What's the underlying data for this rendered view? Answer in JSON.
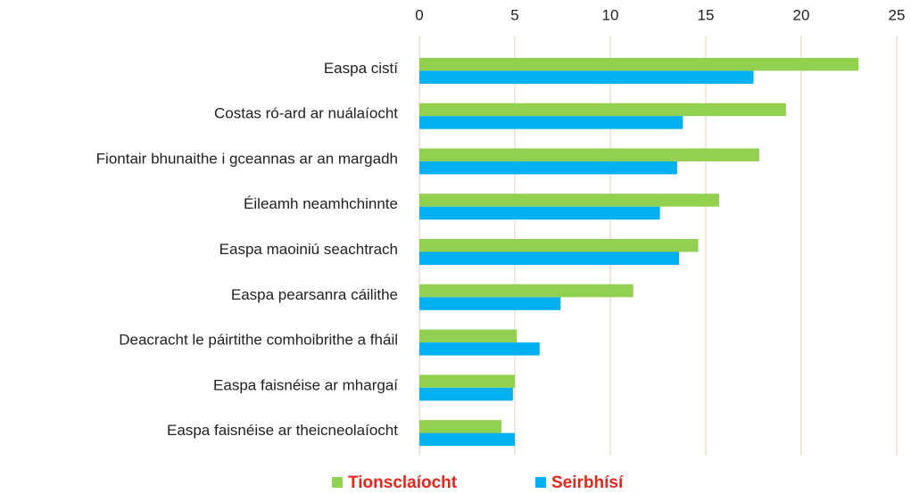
{
  "chart_data": {
    "type": "hbar",
    "categories": [
      "Easpa cistí",
      "Costas ró-ard ar nuálaíocht",
      "Fiontair bhunaithe i gceannas ar an margadh",
      "Éileamh neamhchinnte",
      "Easpa maoiniú seachtrach",
      "Easpa pearsanra cáilithe",
      "Deacracht le páirtithe comhoibrithe a fháil",
      "Easpa faisnéise ar mhargaí",
      "Easpa faisnéise ar theicneolaíocht"
    ],
    "series": [
      {
        "name": "Tionsclaíocht",
        "color": "#92d050",
        "values": [
          23.0,
          19.2,
          17.8,
          15.7,
          14.6,
          11.2,
          5.1,
          5.0,
          4.3
        ]
      },
      {
        "name": "Seirbhísí",
        "color": "#00b0f0",
        "values": [
          17.5,
          13.8,
          13.5,
          12.6,
          13.6,
          7.4,
          6.3,
          4.9,
          5.0
        ]
      }
    ],
    "xlim": [
      0,
      25
    ],
    "xticks": [
      0,
      5,
      10,
      15,
      20,
      25
    ],
    "grid": true,
    "legend": "bottom"
  }
}
